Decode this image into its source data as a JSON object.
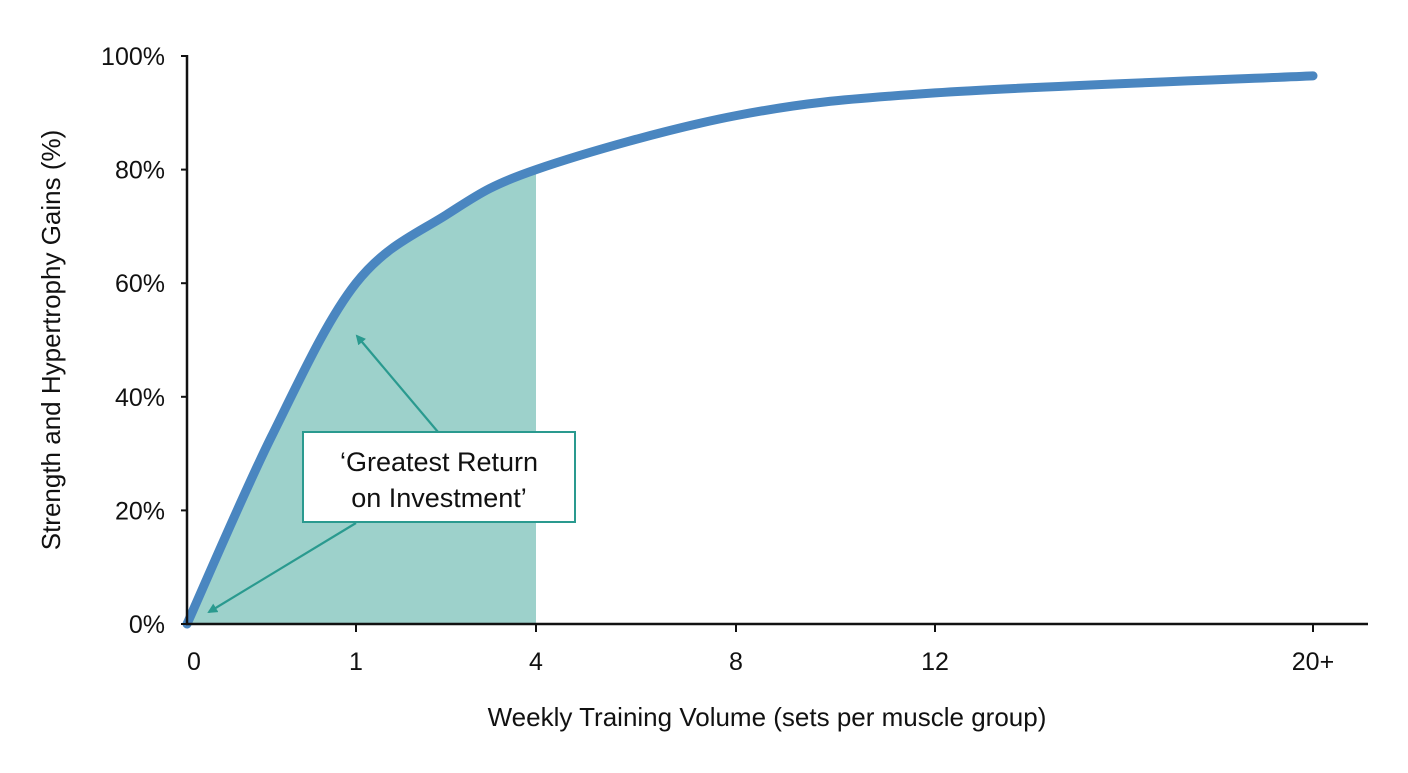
{
  "chart_data": {
    "type": "area",
    "title": "",
    "xlabel": "Weekly Training Volume (sets per muscle group)",
    "ylabel": "Strength and Hypertrophy Gains (%)",
    "x_tick_labels": [
      "0",
      "1",
      "4",
      "8",
      "12",
      "20+"
    ],
    "x_ticks": [
      0,
      1,
      4,
      8,
      12,
      20
    ],
    "y_tick_labels": [
      "0%",
      "20%",
      "40%",
      "60%",
      "80%",
      "100%"
    ],
    "y_ticks": [
      0,
      20,
      40,
      60,
      80,
      100
    ],
    "ylim": [
      0,
      100
    ],
    "grid": false,
    "series": [
      {
        "x": [
          0,
          0.5,
          1,
          2.5,
          4,
          8,
          12,
          20
        ],
        "y": [
          0,
          33,
          60,
          72,
          80,
          89.5,
          93.5,
          96.5
        ]
      }
    ],
    "shaded_region": {
      "x_from": 0,
      "x_to": 4
    },
    "annotation": {
      "line1": "‘Greatest Return",
      "line2": "on Investment’"
    },
    "colors": {
      "line": "#4a86c0",
      "fill": "#9dd1cb",
      "annotation": "#2a9a8f",
      "axis": "#111111"
    }
  }
}
